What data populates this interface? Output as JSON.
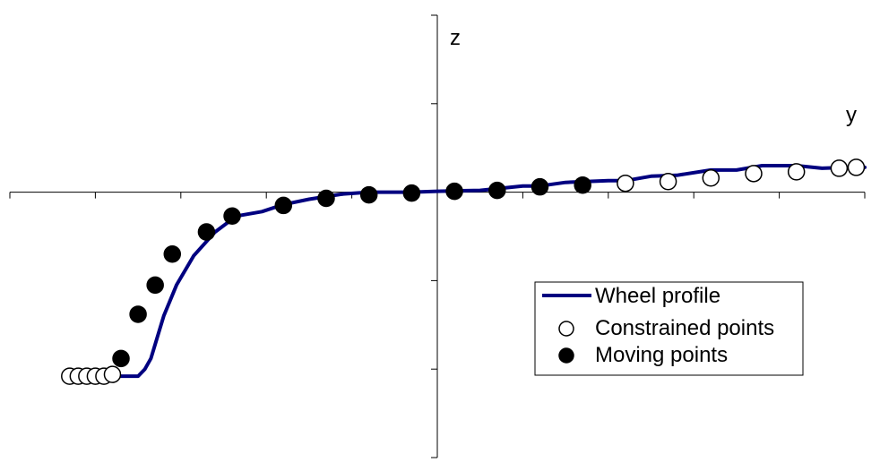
{
  "chart_data": {
    "type": "scatter",
    "title": "",
    "xlabel": "y",
    "ylabel": "z",
    "xlim": [
      -5,
      5
    ],
    "ylim": [
      -3,
      2
    ],
    "grid": false,
    "legend_position": "bottom-right",
    "colors": {
      "profile": "#000080",
      "marker_stroke": "#000000",
      "constrained_fill": "#ffffff",
      "moving_fill": "#000000"
    },
    "legend": [
      "Wheel profile",
      "Constrained points",
      "Moving points"
    ],
    "series": [
      {
        "name": "Wheel profile",
        "kind": "line",
        "x": [
          -3.83,
          -3.5,
          -3.42,
          -3.35,
          -3.2,
          -3.05,
          -2.85,
          -2.6,
          -2.35,
          -2.05,
          -1.8,
          -1.5,
          -1.3,
          -1.1,
          -0.8,
          -0.5,
          -0.3,
          0,
          0.5,
          1.0,
          1.2,
          1.5,
          2.0,
          2.2,
          2.5,
          2.8,
          3.2,
          3.5,
          3.8,
          4.2,
          4.5,
          4.8,
          5.0
        ],
        "y": [
          -2.08,
          -2.08,
          -2.0,
          -1.88,
          -1.4,
          -1.05,
          -0.72,
          -0.45,
          -0.27,
          -0.22,
          -0.14,
          -0.08,
          -0.05,
          -0.02,
          0.0,
          0.0,
          0.0,
          0.01,
          0.02,
          0.07,
          0.07,
          0.11,
          0.13,
          0.13,
          0.18,
          0.19,
          0.25,
          0.25,
          0.3,
          0.3,
          0.27,
          0.28,
          0.28
        ]
      },
      {
        "name": "Constrained points",
        "kind": "markers",
        "x": [
          -4.3,
          -4.2,
          -4.1,
          -4.0,
          -3.9,
          -3.8,
          2.2,
          2.7,
          3.2,
          3.7,
          4.2,
          4.7,
          4.9
        ],
        "y": [
          -2.08,
          -2.08,
          -2.08,
          -2.08,
          -2.08,
          -2.06,
          0.1,
          0.12,
          0.16,
          0.21,
          0.23,
          0.27,
          0.28
        ]
      },
      {
        "name": "Moving points",
        "kind": "markers",
        "x": [
          -3.7,
          -3.5,
          -3.3,
          -3.1,
          -2.7,
          -2.4,
          -1.8,
          -1.3,
          -0.8,
          -0.3,
          0.2,
          0.7,
          1.2,
          1.7
        ],
        "y": [
          -1.88,
          -1.38,
          -1.05,
          -0.7,
          -0.45,
          -0.27,
          -0.15,
          -0.07,
          -0.03,
          -0.01,
          0.01,
          0.02,
          0.06,
          0.08
        ]
      }
    ]
  }
}
